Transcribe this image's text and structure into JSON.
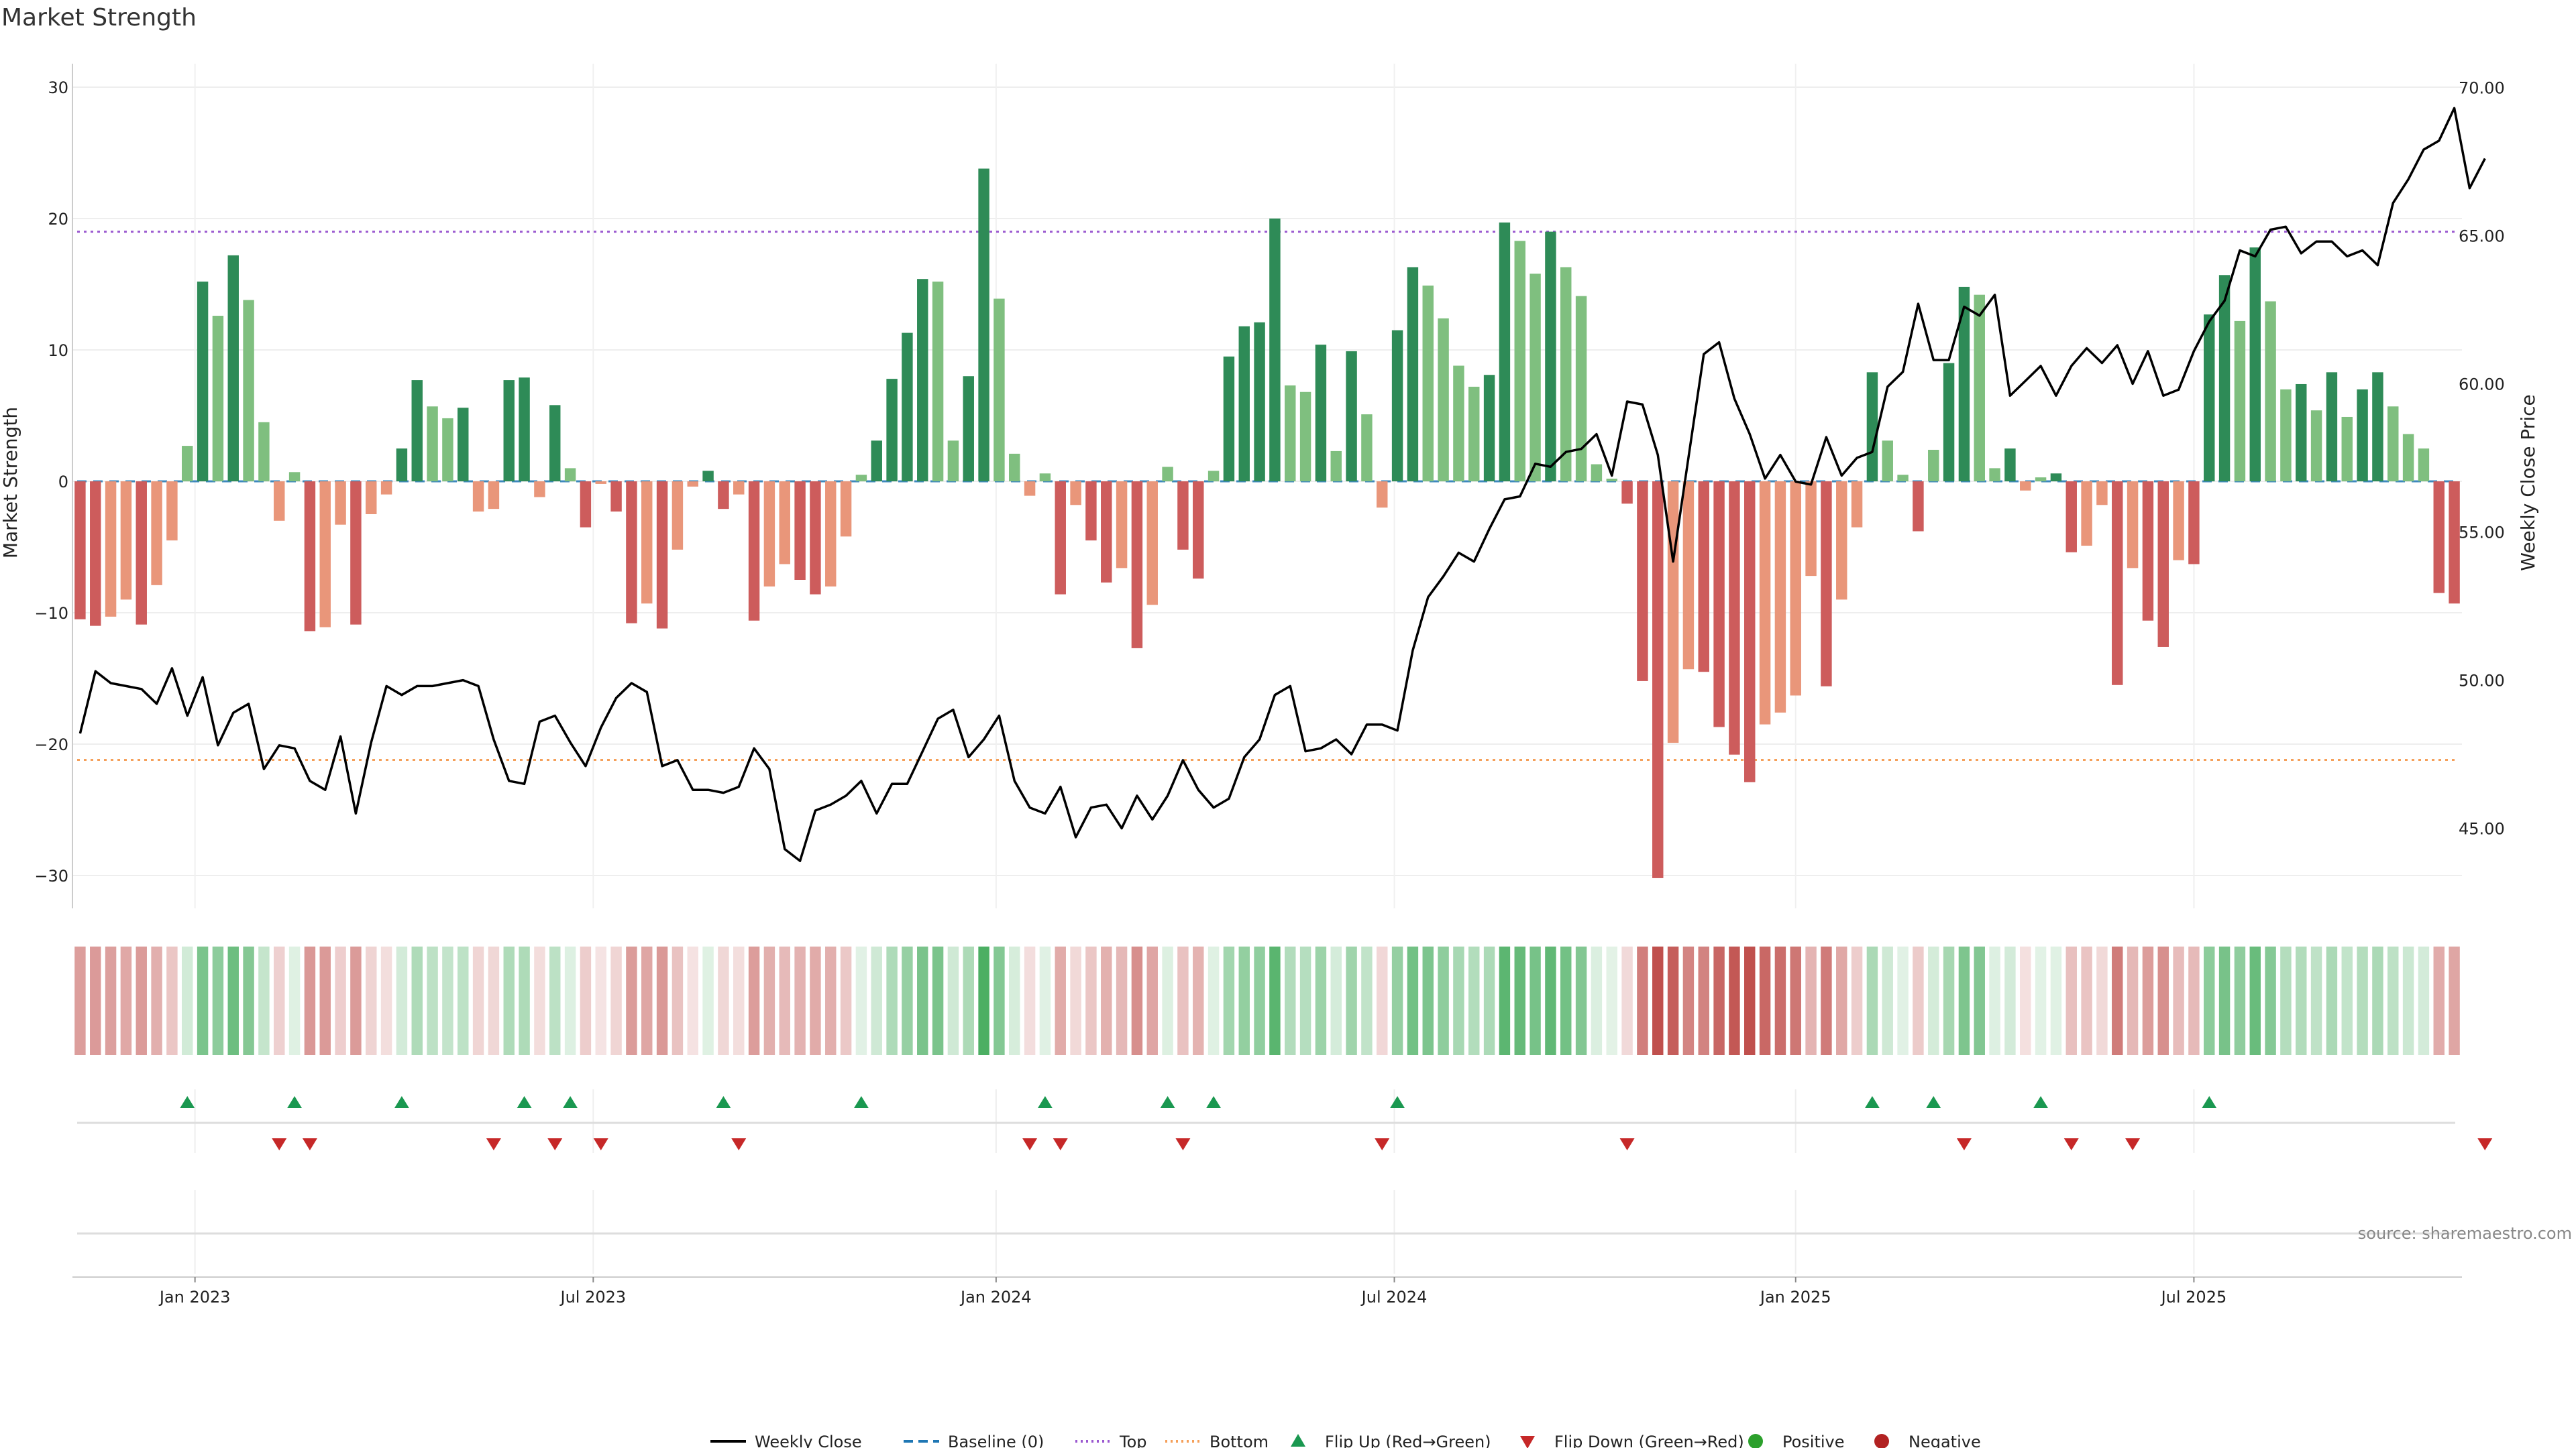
{
  "chart_data": {
    "type": "bar",
    "title": "Market Strength",
    "ylabel": "Market Strength",
    "y2label": "Weekly Close Price",
    "source": "source: sharemaestro.com",
    "ylim": [
      -33,
      33
    ],
    "y2lim": [
      42.3,
      70.8
    ],
    "y_ticks": [
      "30",
      "20",
      "10",
      "0",
      "−10",
      "−20",
      "−30"
    ],
    "y_tick_values": [
      30,
      20,
      10,
      0,
      -10,
      -20,
      -30
    ],
    "y2_ticks": [
      "70.00",
      "65.00",
      "60.00",
      "55.00",
      "50.00",
      "45.00"
    ],
    "y2_tick_values": [
      70,
      65,
      60,
      55,
      50,
      45
    ],
    "x_ticks": [
      {
        "label": "Jan 2023",
        "week": 7.5
      },
      {
        "label": "Jul 2023",
        "week": 33.5
      },
      {
        "label": "Jan 2024",
        "week": 59.8
      },
      {
        "label": "Jul 2024",
        "week": 85.8
      },
      {
        "label": "Jan 2025",
        "week": 112
      },
      {
        "label": "Jul 2025",
        "week": 138
      }
    ],
    "reference_lines": {
      "top": 19,
      "bottom": -21.2,
      "baseline": 0
    },
    "colors": {
      "pos_strong": "#2e8b57",
      "pos_weak": "#7fbf7f",
      "neg_strong": "#cd5c5c",
      "neg_weak": "#e9967a",
      "price": "#000000",
      "baseline": "#1f77b4",
      "top": "#9b59d0",
      "bottom": "#f5a05a",
      "flip_up": "#1a9850",
      "flip_down": "#c62828",
      "positive": "#2ca02c",
      "negative": "#b22222"
    },
    "strength": [
      -10.5,
      -11,
      -10.3,
      -9,
      -10.9,
      -7.9,
      -4.5,
      2.7,
      15.2,
      12.6,
      17.2,
      13.8,
      4.5,
      -3,
      0.7,
      -11.4,
      -11.1,
      -3.3,
      -10.9,
      -2.5,
      -1,
      2.5,
      7.7,
      5.7,
      4.8,
      5.6,
      -2.3,
      -2.1,
      7.7,
      7.9,
      -1.2,
      5.8,
      1,
      -3.5,
      -0.2,
      -2.3,
      -10.8,
      -9.3,
      -11.2,
      -5.2,
      -0.4,
      0.8,
      -2.1,
      -1,
      -10.6,
      -8,
      -6.3,
      -7.5,
      -8.6,
      -8,
      -4.2,
      0.5,
      3.1,
      7.8,
      11.3,
      15.4,
      15.2,
      3.1,
      8,
      23.8,
      13.9,
      2.1,
      -1.1,
      0.6,
      -8.6,
      -1.8,
      -4.5,
      -7.7,
      -6.6,
      -12.7,
      -9.4,
      1.1,
      -5.2,
      -7.4,
      0.8,
      9.5,
      11.8,
      12.1,
      20,
      7.3,
      6.8,
      10.4,
      2.3,
      9.9,
      5.1,
      -2,
      11.5,
      16.3,
      14.9,
      12.4,
      8.8,
      7.2,
      8.1,
      19.7,
      18.3,
      15.8,
      19,
      16.3,
      14.1,
      1.3,
      0.2,
      -1.7,
      -15.2,
      -30.2,
      -19.9,
      -14.3,
      -14.5,
      -18.7,
      -20.8,
      -22.9,
      -18.5,
      -17.6,
      -16.3,
      -7.2,
      -15.6,
      -9,
      -3.5,
      8.3,
      3.1,
      0.5,
      -3.8,
      2.4,
      9,
      14.8,
      14.2,
      1,
      2.5,
      -0.7,
      0.3,
      0.6,
      -5.4,
      -4.9,
      -1.8,
      -15.5,
      -6.6,
      -10.6,
      -12.6,
      -6,
      -6.3,
      12.7,
      15.7,
      12.2,
      17.8,
      13.7,
      7,
      7.4,
      5.4,
      8.3,
      4.9,
      7,
      8.3,
      5.7,
      3.6,
      2.5,
      -8.5,
      -9.3
    ],
    "price": [
      48.2,
      50.3,
      49.9,
      49.8,
      49.7,
      49.2,
      50.4,
      48.8,
      50.1,
      47.8,
      48.9,
      49.2,
      47.0,
      47.8,
      47.7,
      46.6,
      46.3,
      48.1,
      45.5,
      47.9,
      49.8,
      49.5,
      49.8,
      49.8,
      49.9,
      50.0,
      49.8,
      48.0,
      46.6,
      46.5,
      48.6,
      48.8,
      47.9,
      47.1,
      48.4,
      49.4,
      49.9,
      49.6,
      47.1,
      47.3,
      46.3,
      46.3,
      46.2,
      46.4,
      47.7,
      47.0,
      44.3,
      43.9,
      45.6,
      45.8,
      46.1,
      46.6,
      45.5,
      46.5,
      46.5,
      47.6,
      48.7,
      49.0,
      47.4,
      48.0,
      48.8,
      46.6,
      45.7,
      45.5,
      46.4,
      44.7,
      45.7,
      45.8,
      45.0,
      46.1,
      45.3,
      46.1,
      47.3,
      46.3,
      45.7,
      46.0,
      47.4,
      48.0,
      49.5,
      49.8,
      47.6,
      47.7,
      48.0,
      47.5,
      48.5,
      48.5,
      48.3,
      51.0,
      52.8,
      53.5,
      54.3,
      54.0,
      55.1,
      56.1,
      56.2,
      57.3,
      57.2,
      57.7,
      57.8,
      58.3,
      56.9,
      59.4,
      59.3,
      57.6,
      54.0,
      57.5,
      61.0,
      61.4,
      59.5,
      58.3,
      56.8,
      57.6,
      56.7,
      56.6,
      58.2,
      56.9,
      57.5,
      57.7,
      59.9,
      60.4,
      62.7,
      60.8,
      60.8,
      62.6,
      62.3,
      63.0,
      59.6,
      60.1,
      60.6,
      59.6,
      60.6,
      61.2,
      60.7,
      61.3,
      60.0,
      61.1,
      59.6,
      59.8,
      61.1,
      62.1,
      62.8,
      64.5,
      64.3,
      65.2,
      65.3,
      64.4,
      64.8,
      64.8,
      64.3,
      64.5,
      64.0,
      66.1,
      66.9,
      67.9,
      68.2,
      69.3,
      66.6,
      67.6
    ],
    "flip_up_weeks": [
      7,
      14,
      21,
      29,
      32,
      42,
      51,
      63,
      71,
      74,
      86,
      117,
      121,
      128,
      139
    ],
    "flip_down_weeks": [
      13,
      15,
      27,
      31,
      34,
      43,
      62,
      64,
      72,
      85,
      101,
      123,
      130,
      134,
      157
    ],
    "legend": [
      "Weekly Close",
      "Baseline (0)",
      "Top",
      "Bottom",
      "Flip Up (Red→Green)",
      "Flip Down (Green→Red)",
      "Positive",
      "Negative"
    ]
  }
}
